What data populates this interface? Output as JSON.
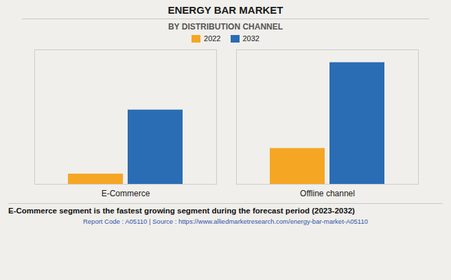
{
  "chart_data": {
    "type": "bar",
    "title": "ENERGY BAR MARKET",
    "subtitle": "BY DISTRIBUTION CHANNEL",
    "categories": [
      "E-Commerce",
      "Offline channel"
    ],
    "series": [
      {
        "name": "2022",
        "color": "#F5A623",
        "values": [
          0.08,
          0.28
        ]
      },
      {
        "name": "2032",
        "color": "#2A6DB5",
        "values": [
          0.58,
          0.95
        ]
      }
    ],
    "ylim": [
      0,
      1.05
    ],
    "tick_labels": "x",
    "legend": "top",
    "annotations": [
      "E-Commerce segment is the fastest growing segment during the forecast period (2023-2032)",
      "Report Code : A05110  |  Source : https://www.alliedmarketresearch.com/energy-bar-market-A05110"
    ]
  }
}
